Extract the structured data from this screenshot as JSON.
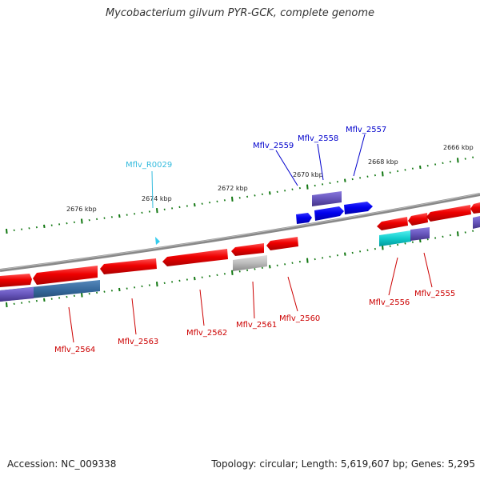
{
  "title": "Mycobacterium gilvum PYR-GCK, complete genome",
  "footer": {
    "accession": "Accession: NC_009338",
    "summary": "Topology: circular; Length: 5,619,607 bp; Genes: 5,295"
  },
  "colors": {
    "cds": "#ee1111",
    "cds_blue": "#0000ee",
    "trna": "#33ccee",
    "backbone": "#888888",
    "tick": "#117711",
    "label_red": "#cc0000",
    "label_blue": "#0000cc",
    "label_cyan": "#33bbdd"
  },
  "kbp_labels": [
    "2676 kbp",
    "2674 kbp",
    "2672 kbp",
    "2670 kbp",
    "2668 kbp",
    "2666 kbp"
  ],
  "gene_labels": [
    {
      "id": "Mflv_2564",
      "color": "red"
    },
    {
      "id": "Mflv_2563",
      "color": "red"
    },
    {
      "id": "Mflv_2562",
      "color": "red"
    },
    {
      "id": "Mflv_2561",
      "color": "red"
    },
    {
      "id": "Mflv_2560",
      "color": "red"
    },
    {
      "id": "Mflv_2556",
      "color": "red"
    },
    {
      "id": "Mflv_2555",
      "color": "red"
    },
    {
      "id": "Mflv_R0029",
      "color": "cyan"
    },
    {
      "id": "Mflv_2559",
      "color": "blue"
    },
    {
      "id": "Mflv_2558",
      "color": "blue"
    },
    {
      "id": "Mflv_2557",
      "color": "blue"
    }
  ]
}
